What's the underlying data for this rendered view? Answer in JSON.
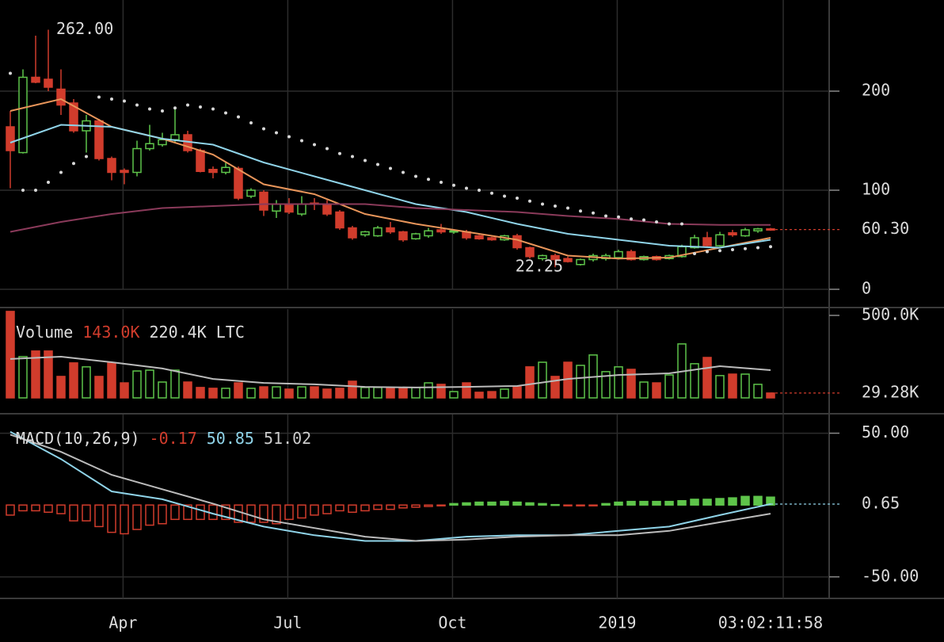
{
  "chart_data": [
    {
      "type": "candlestick",
      "x": [
        0,
        1,
        2,
        3,
        4,
        5,
        6,
        7,
        8,
        9,
        10,
        11,
        12,
        13,
        14,
        15,
        16,
        17,
        18,
        19,
        20,
        21,
        22,
        23,
        24,
        25,
        26,
        27,
        28,
        29,
        30,
        31,
        32,
        33,
        34,
        35,
        36,
        37,
        38,
        39,
        40,
        41,
        42,
        43,
        44,
        45,
        46,
        47,
        48,
        49,
        50,
        51,
        52,
        53,
        54,
        55,
        56,
        57,
        58,
        59,
        60
      ],
      "open": [
        164,
        138,
        214,
        212,
        202,
        188,
        160,
        170,
        132,
        120,
        118,
        142,
        146,
        151,
        156,
        140,
        121,
        118,
        122,
        94,
        98,
        79,
        86,
        76,
        87,
        86,
        78,
        62,
        55,
        54,
        62,
        58,
        51,
        54,
        60,
        58,
        58,
        54,
        52,
        50,
        54,
        42,
        31,
        34,
        31,
        25,
        30,
        31,
        32,
        38,
        30,
        33,
        31,
        33,
        42,
        52,
        44,
        57,
        54,
        59,
        61
      ],
      "high": [
        180,
        222,
        256,
        262,
        222,
        192,
        176,
        172,
        134,
        122,
        150,
        166,
        158,
        184,
        160,
        142,
        124,
        128,
        124,
        102,
        100,
        90,
        92,
        94,
        92,
        90,
        80,
        64,
        59,
        64,
        68,
        59,
        57,
        62,
        66,
        60,
        60,
        55,
        53,
        55,
        56,
        43,
        35,
        36,
        33,
        31,
        36,
        36,
        40,
        40,
        34,
        34,
        35,
        45,
        55,
        58,
        58,
        60,
        62,
        62,
        62
      ],
      "low": [
        102,
        137,
        208,
        200,
        176,
        158,
        138,
        130,
        110,
        106,
        114,
        140,
        144,
        148,
        138,
        118,
        112,
        116,
        90,
        92,
        74,
        72,
        76,
        74,
        80,
        74,
        60,
        50,
        53,
        53,
        56,
        48,
        50,
        52,
        56,
        56,
        50,
        50,
        49,
        49,
        40,
        31,
        29,
        22.25,
        27,
        24,
        28,
        29,
        30,
        29,
        29,
        29,
        30,
        32,
        41,
        42,
        43,
        53,
        53,
        57,
        59
      ],
      "close": [
        140,
        214,
        209,
        204,
        186,
        160,
        170,
        132,
        118,
        118,
        142,
        147,
        151,
        156,
        140,
        119,
        118,
        123,
        92,
        100,
        80,
        86,
        78,
        86,
        86,
        76,
        62,
        52,
        58,
        62,
        58,
        50,
        56,
        59,
        58,
        59,
        52,
        51,
        50,
        54,
        42,
        33,
        34,
        30,
        28,
        30,
        34,
        34,
        38,
        30,
        33,
        30,
        34,
        43,
        52,
        44,
        55,
        55,
        60,
        61,
        60.3
      ],
      "up_color": "#5ec44a",
      "down_color": "#d13c2c",
      "xlim": [
        -0.8125,
        64.5
      ],
      "xticks": [
        {
          "value": 8.9,
          "label": "Apr"
        },
        {
          "value": 21.9,
          "label": "Jul"
        },
        {
          "value": 34.9,
          "label": "Oct"
        },
        {
          "value": 47.9,
          "label": "2019"
        }
      ],
      "ylim": [
        0,
        292
      ],
      "yticks": [
        0,
        100,
        200
      ],
      "grid": true,
      "overlays": [
        {
          "color": "#e8955a",
          "x": [
            0,
            4,
            8,
            12,
            16,
            20,
            24,
            28,
            32,
            36,
            40,
            44,
            48,
            52,
            56,
            60
          ],
          "values": [
            180,
            192,
            164,
            152,
            136,
            106,
            96,
            76,
            66,
            58,
            50,
            34,
            31,
            32,
            42,
            52
          ]
        },
        {
          "color": "#8fd3e8",
          "x": [
            0,
            4,
            8,
            12,
            16,
            20,
            24,
            28,
            32,
            36,
            40,
            44,
            48,
            52,
            56,
            60
          ],
          "values": [
            148,
            166,
            164,
            152,
            146,
            128,
            114,
            100,
            86,
            78,
            66,
            56,
            50,
            44,
            42,
            50
          ]
        },
        {
          "color": "#8a3a5a",
          "x": [
            0,
            4,
            8,
            12,
            16,
            20,
            24,
            28,
            32,
            36,
            40,
            44,
            48,
            52,
            56,
            60
          ],
          "values": [
            58,
            68,
            76,
            82,
            84,
            86,
            86,
            86,
            82,
            80,
            78,
            74,
            71,
            66,
            65,
            65
          ]
        }
      ],
      "sar": {
        "color": "#d8d8d8",
        "values": [
          218,
          100,
          100,
          108,
          118,
          127,
          134,
          194,
          192,
          190,
          186,
          182,
          180,
          183,
          186,
          184,
          182,
          178,
          174,
          168,
          162,
          158,
          154,
          150,
          146,
          142,
          137,
          134,
          130,
          126,
          122,
          118,
          114,
          111,
          108,
          105,
          102,
          100,
          97,
          94,
          92,
          89,
          86,
          84,
          82,
          79,
          77,
          74,
          73,
          71,
          70,
          68,
          66,
          66,
          36,
          38,
          39,
          40,
          41,
          42,
          43
        ]
      },
      "high_label": {
        "value": 262,
        "label": "262.00"
      },
      "low_label": {
        "value": 22.25,
        "label": "22.25"
      },
      "last": {
        "value": 60.3,
        "label": "60.30",
        "color": "#d13c2c"
      },
      "countdown": "03:02:11:58"
    },
    {
      "type": "bar",
      "legend": [
        {
          "text": "Volume",
          "color": "#dddddd"
        },
        {
          "text": "143.0K",
          "color": "#d13c2c"
        },
        {
          "text": "220.4K",
          "color": "#dddddd"
        },
        {
          "text": "LTC",
          "color": "#dddddd"
        }
      ],
      "values": [
        524000,
        250000,
        284000,
        284000,
        130000,
        212000,
        188000,
        130000,
        212000,
        91000,
        163000,
        168000,
        96000,
        168000,
        96000,
        63000,
        58000,
        58000,
        91000,
        58000,
        67000,
        67000,
        53000,
        67000,
        67000,
        53000,
        58000,
        101000,
        63000,
        63000,
        63000,
        63000,
        63000,
        91000,
        82000,
        38000,
        91000,
        34000,
        38000,
        53000,
        67000,
        188000,
        216000,
        130000,
        216000,
        197000,
        260000,
        159000,
        188000,
        173000,
        96000,
        91000,
        139000,
        327000,
        207000,
        245000,
        135000,
        144000,
        144000,
        82000,
        29280
      ],
      "ylim": [
        0,
        538000
      ],
      "yticks": [
        {
          "value": 500000,
          "label": "500.0K"
        }
      ],
      "grid": false,
      "overlays": [
        {
          "color": "#bbbbbb",
          "x": [
            0,
            4,
            8,
            12,
            16,
            20,
            24,
            28,
            32,
            36,
            40,
            44,
            48,
            52,
            56,
            60
          ],
          "values": [
            236000,
            250000,
            216000,
            178000,
            115000,
            91000,
            82000,
            67000,
            63000,
            67000,
            72000,
            115000,
            139000,
            149000,
            192000,
            168000
          ]
        }
      ],
      "last": {
        "value": 29280,
        "label": "29.28K",
        "color": "#d13c2c"
      }
    },
    {
      "type": "macd",
      "legend": [
        {
          "text": "MACD(10,26,9)",
          "color": "#dddddd"
        },
        {
          "text": "-0.17",
          "color": "#d13c2c"
        },
        {
          "text": "50.85",
          "color": "#8fd3e8"
        },
        {
          "text": "51.02",
          "color": "#cccccc"
        }
      ],
      "values": [
        -7,
        -4,
        -4,
        -5,
        -6,
        -11,
        -11,
        -15,
        -19,
        -20,
        -17,
        -14,
        -13,
        -10,
        -10,
        -10,
        -10,
        -10,
        -12,
        -12,
        -12,
        -13,
        -10,
        -9,
        -7,
        -6,
        -4,
        -5,
        -4,
        -3,
        -3,
        -2,
        -1.5,
        -1,
        -0.5,
        1,
        1.5,
        2,
        2,
        2.5,
        2,
        1.5,
        1,
        0.3,
        -0.3,
        -0.5,
        -0.2,
        1,
        2,
        2.5,
        2.5,
        2.5,
        2.5,
        3,
        4,
        4,
        4.5,
        5,
        6,
        6,
        5.5
      ],
      "ylim": [
        -65,
        63
      ],
      "yticks": [
        {
          "value": 50,
          "label": "50.00"
        },
        {
          "value": -50,
          "label": "-50.00"
        }
      ],
      "grid": true,
      "overlays": [
        {
          "color": "#8fd3e8",
          "x": [
            0,
            4,
            8,
            12,
            16,
            20,
            24,
            28,
            32,
            36,
            40,
            44,
            48,
            52,
            56,
            60
          ],
          "values": [
            51,
            32,
            9.5,
            4,
            -6,
            -15,
            -21,
            -25,
            -25,
            -22,
            -21,
            -21,
            -18,
            -15,
            -7,
            0.7
          ]
        },
        {
          "color": "#bbbbbb",
          "x": [
            0,
            4,
            8,
            12,
            16,
            20,
            24,
            28,
            32,
            36,
            40,
            44,
            48,
            52,
            56,
            60
          ],
          "values": [
            49,
            37,
            21,
            11,
            1,
            -10,
            -16,
            -22,
            -25,
            -24,
            -22,
            -21,
            -21,
            -18,
            -12,
            -6
          ]
        }
      ],
      "last": {
        "value": 0.65,
        "label": "0.65",
        "color": "#8fd3e8"
      }
    }
  ]
}
